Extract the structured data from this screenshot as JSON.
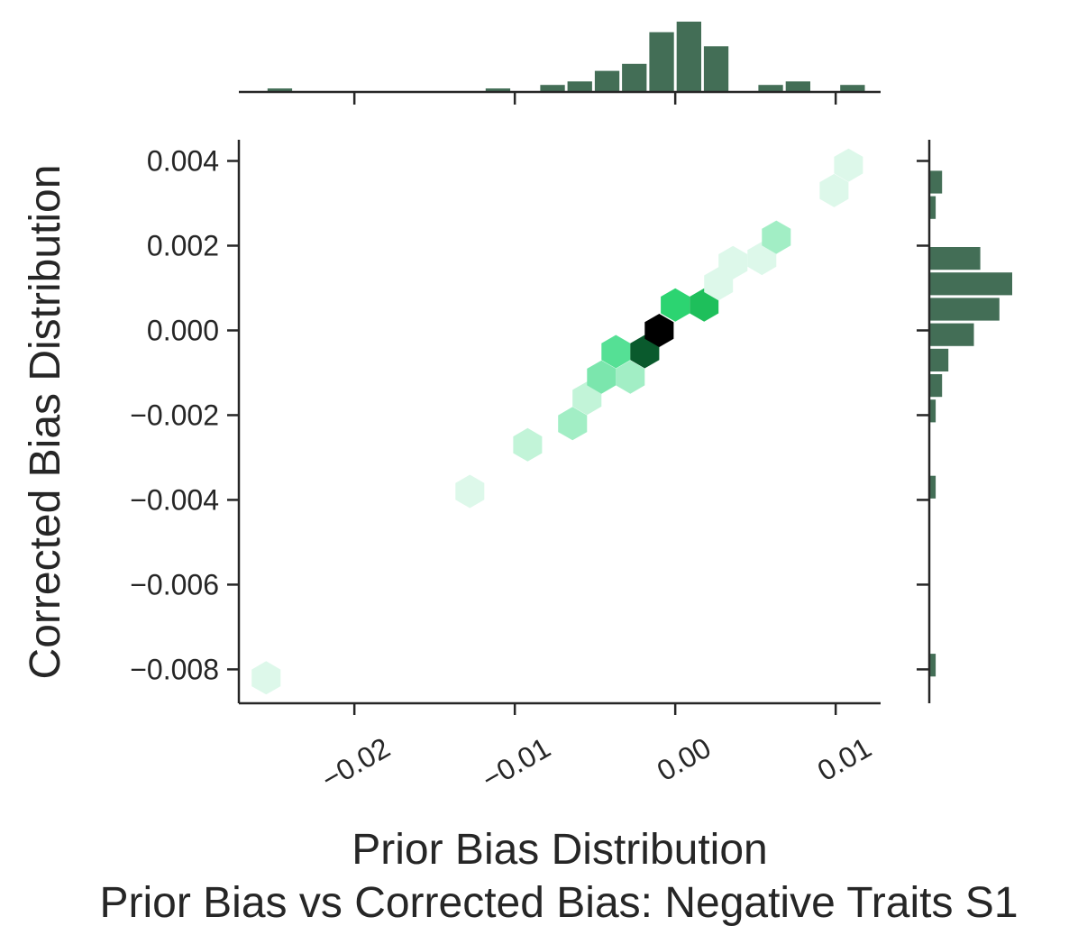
{
  "chart_data": {
    "type": "hexbin",
    "title": "Prior Bias vs Corrected Bias: Negative Traits S1",
    "xlabel": "Prior Bias Distribution",
    "ylabel": "Corrected Bias Distribution",
    "xlim": [
      -0.0272,
      0.0128
    ],
    "ylim": [
      -0.0088,
      0.0045
    ],
    "x_ticks": [
      -0.02,
      -0.01,
      0.0,
      0.01
    ],
    "x_tick_labels": [
      "−0.02",
      "−0.01",
      "0.00",
      "0.01"
    ],
    "y_ticks": [
      0.004,
      0.002,
      0.0,
      -0.002,
      -0.004,
      -0.006,
      -0.008
    ],
    "y_tick_labels": [
      "0.004",
      "0.002",
      "0.000",
      "−0.002",
      "−0.004",
      "−0.006",
      "−0.008"
    ],
    "grid": false,
    "colors": {
      "marginal_bars": "#436e56",
      "hex_scale": [
        "#ddf8ea",
        "#c2f4d8",
        "#a2eec5",
        "#7be6ad",
        "#55e095",
        "#2cd471",
        "#1ebf5b",
        "#0a5a2d",
        "#000000"
      ]
    },
    "hexbins": [
      {
        "x": -0.0255,
        "y": -0.0082,
        "count": 1
      },
      {
        "x": -0.0128,
        "y": -0.0038,
        "count": 1
      },
      {
        "x": -0.0092,
        "y": -0.0027,
        "count": 2
      },
      {
        "x": -0.0064,
        "y": -0.0022,
        "count": 3
      },
      {
        "x": -0.0055,
        "y": -0.0016,
        "count": 2
      },
      {
        "x": -0.0046,
        "y": -0.0011,
        "count": 4
      },
      {
        "x": -0.0028,
        "y": -0.0011,
        "count": 3
      },
      {
        "x": -0.0037,
        "y": -0.0005,
        "count": 5
      },
      {
        "x": -0.0019,
        "y": -0.0005,
        "count": 8
      },
      {
        "x": -0.001,
        "y": 0.0,
        "count": 9
      },
      {
        "x": 0.0,
        "y": 0.0006,
        "count": 6
      },
      {
        "x": 0.0018,
        "y": 0.0006,
        "count": 7
      },
      {
        "x": 0.0027,
        "y": 0.0011,
        "count": 1
      },
      {
        "x": 0.0036,
        "y": 0.0016,
        "count": 1
      },
      {
        "x": 0.0054,
        "y": 0.0017,
        "count": 1
      },
      {
        "x": 0.0063,
        "y": 0.0022,
        "count": 3
      },
      {
        "x": 0.0099,
        "y": 0.0033,
        "count": 1
      },
      {
        "x": 0.0108,
        "y": 0.0039,
        "count": 1
      }
    ],
    "x_marginal": {
      "bin_edges": [
        -0.0272,
        -0.0255,
        -0.0238,
        -0.0221,
        -0.0204,
        -0.0187,
        -0.017,
        -0.0153,
        -0.0136,
        -0.0119,
        -0.0102,
        -0.0085,
        -0.0068,
        -0.0051,
        -0.0034,
        -0.0017,
        0.0,
        0.0017,
        0.0034,
        0.0051,
        0.0068,
        0.0085,
        0.0102,
        0.0119
      ],
      "counts": [
        0,
        1,
        0,
        0,
        0,
        0,
        0,
        0,
        0,
        1,
        0,
        2,
        3,
        6,
        8,
        17,
        20,
        13,
        0,
        2,
        3,
        0,
        2
      ]
    },
    "y_marginal": {
      "bin_edges": [
        -0.0088,
        -0.0082,
        -0.0076,
        -0.007,
        -0.0064,
        -0.0058,
        -0.0052,
        -0.0046,
        -0.004,
        -0.0034,
        -0.0028,
        -0.0022,
        -0.0016,
        -0.001,
        -0.0004,
        0.0002,
        0.0008,
        0.0014,
        0.002,
        0.0026,
        0.0032,
        0.0038,
        0.0044
      ],
      "counts": [
        0,
        1,
        0,
        0,
        0,
        0,
        0,
        0,
        1,
        0,
        0,
        1,
        2,
        3,
        7,
        11,
        13,
        8,
        0,
        1,
        2,
        0,
        1
      ]
    }
  }
}
